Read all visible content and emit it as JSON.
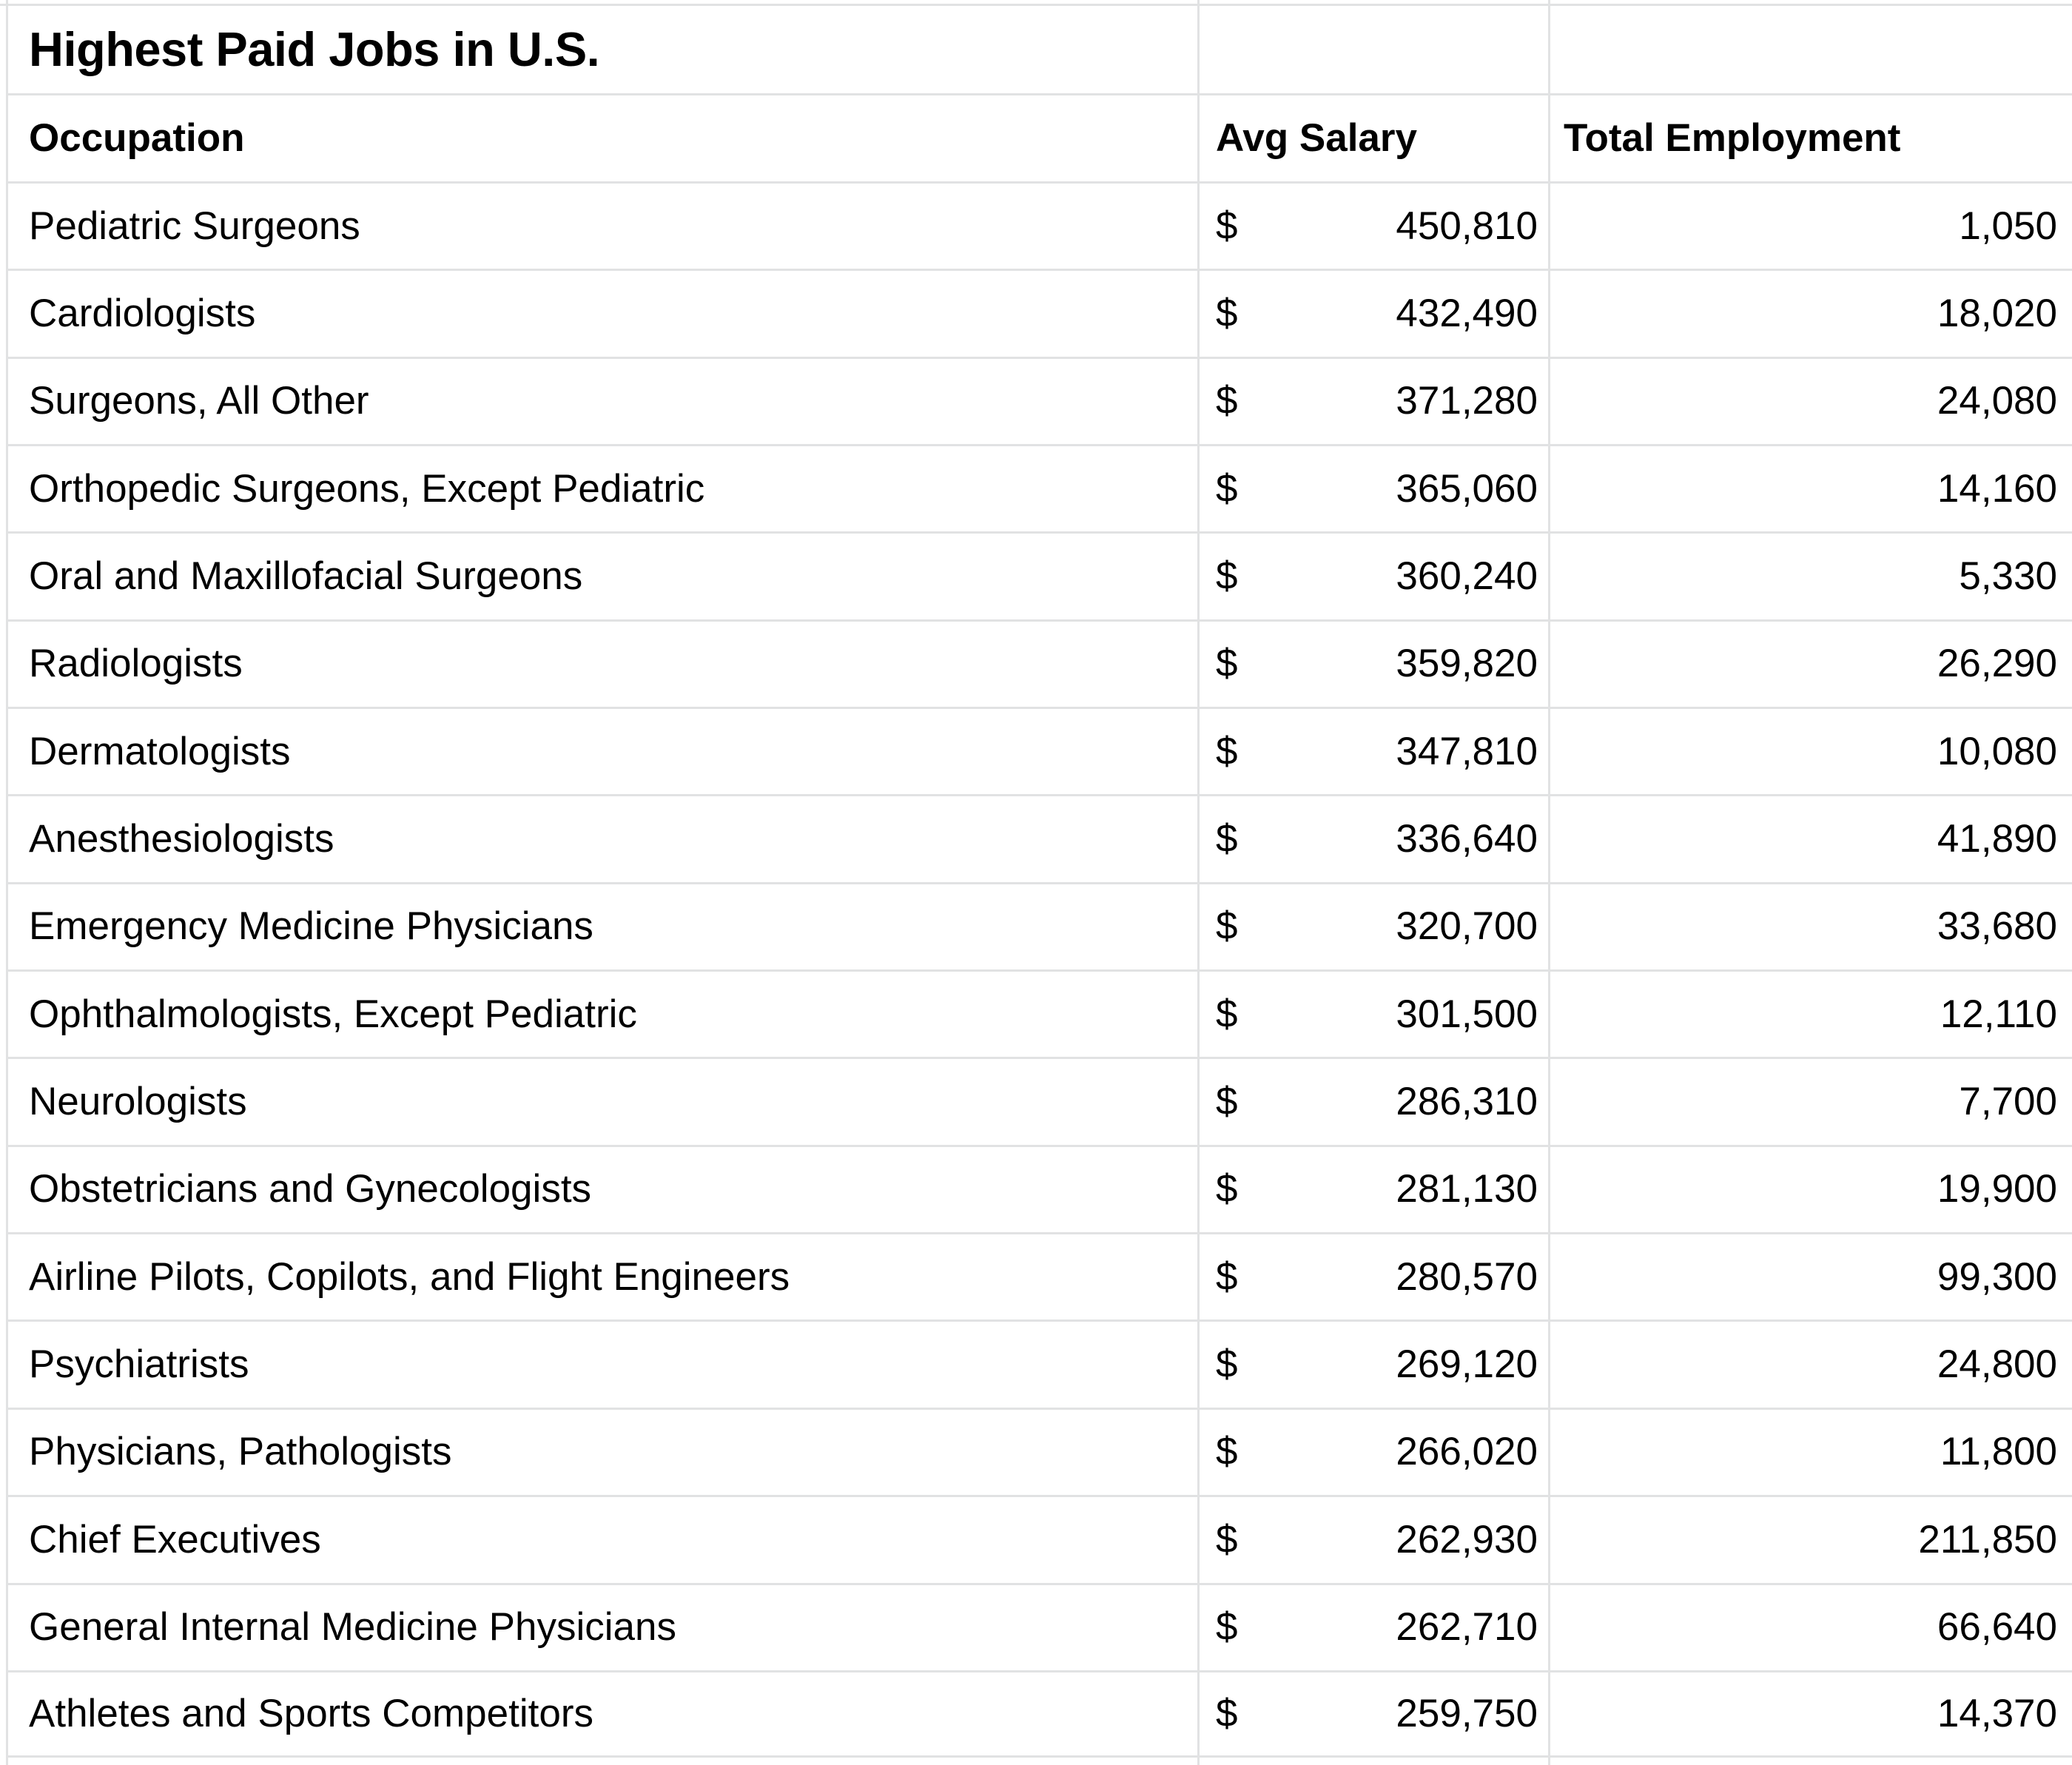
{
  "sheet": {
    "title": "Highest Paid Jobs in U.S.",
    "columns": {
      "occupation": "Occupation",
      "avg_salary": "Avg Salary",
      "total_employment": "Total Employment"
    },
    "currency_symbol": "$",
    "rows": [
      {
        "occupation": "Pediatric Surgeons",
        "avg_salary": "450,810",
        "total_employment": "1,050"
      },
      {
        "occupation": "Cardiologists",
        "avg_salary": "432,490",
        "total_employment": "18,020"
      },
      {
        "occupation": "Surgeons, All Other",
        "avg_salary": "371,280",
        "total_employment": "24,080"
      },
      {
        "occupation": "Orthopedic Surgeons, Except Pediatric",
        "avg_salary": "365,060",
        "total_employment": "14,160"
      },
      {
        "occupation": "Oral and Maxillofacial Surgeons",
        "avg_salary": "360,240",
        "total_employment": "5,330"
      },
      {
        "occupation": "Radiologists",
        "avg_salary": "359,820",
        "total_employment": "26,290"
      },
      {
        "occupation": "Dermatologists",
        "avg_salary": "347,810",
        "total_employment": "10,080"
      },
      {
        "occupation": "Anesthesiologists",
        "avg_salary": "336,640",
        "total_employment": "41,890"
      },
      {
        "occupation": "Emergency Medicine Physicians",
        "avg_salary": "320,700",
        "total_employment": "33,680"
      },
      {
        "occupation": "Ophthalmologists, Except Pediatric",
        "avg_salary": "301,500",
        "total_employment": "12,110"
      },
      {
        "occupation": "Neurologists",
        "avg_salary": "286,310",
        "total_employment": "7,700"
      },
      {
        "occupation": "Obstetricians and Gynecologists",
        "avg_salary": "281,130",
        "total_employment": "19,900"
      },
      {
        "occupation": "Airline Pilots, Copilots, and Flight Engineers",
        "avg_salary": "280,570",
        "total_employment": "99,300"
      },
      {
        "occupation": "Psychiatrists",
        "avg_salary": "269,120",
        "total_employment": "24,800"
      },
      {
        "occupation": "Physicians, Pathologists",
        "avg_salary": "266,020",
        "total_employment": "11,800"
      },
      {
        "occupation": "Chief Executives",
        "avg_salary": "262,930",
        "total_employment": "211,850"
      },
      {
        "occupation": "General Internal Medicine Physicians",
        "avg_salary": "262,710",
        "total_employment": "66,640"
      },
      {
        "occupation": "Athletes and Sports Competitors",
        "avg_salary": "259,750",
        "total_employment": "14,370"
      }
    ],
    "colors": {
      "gridline": "#e1e2e3",
      "text": "#000000",
      "background": "#ffffff"
    }
  }
}
